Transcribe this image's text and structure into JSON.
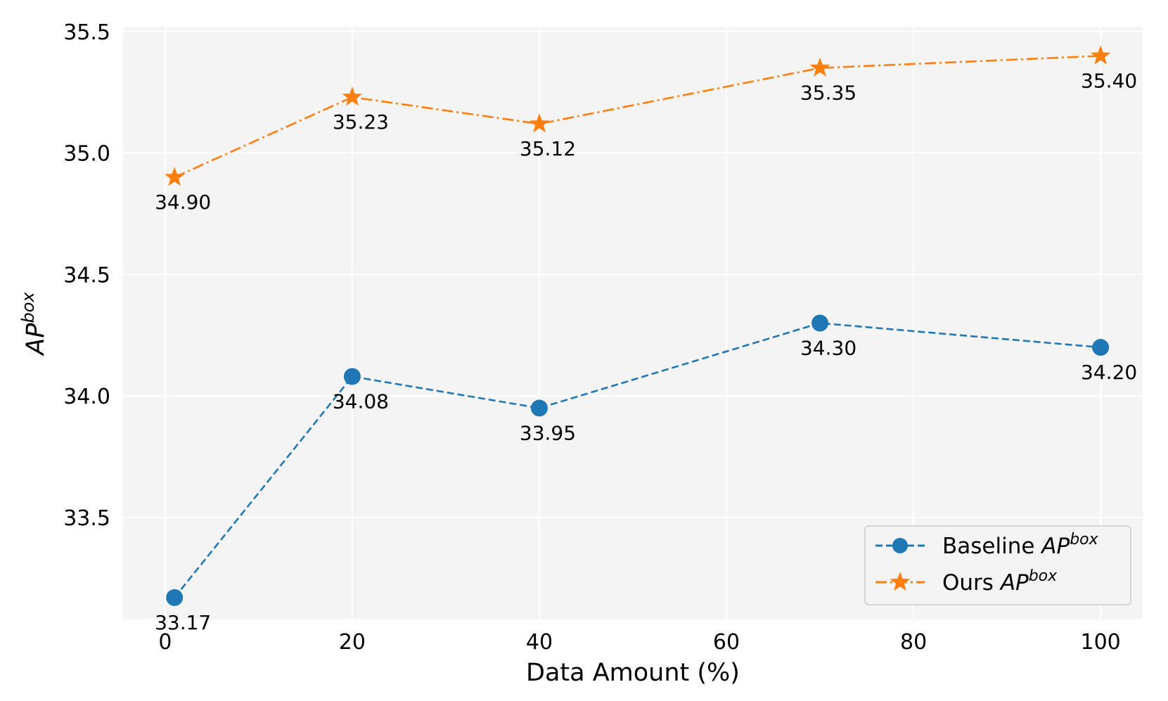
{
  "chart_data": {
    "type": "line",
    "title": "",
    "xlabel": "Data Amount (%)",
    "ylabel_main": "AP",
    "ylabel_sup": "box",
    "xlim": [
      -4.5,
      104.5
    ],
    "ylim": [
      31.0,
      35.5
    ],
    "ylim_display": [
      33.08,
      35.52
    ],
    "xticks": [
      0,
      20,
      40,
      60,
      80,
      100
    ],
    "yticks": [
      33.5,
      34.0,
      34.5,
      35.0,
      35.5
    ],
    "grid": true,
    "legend_position": "lower-right",
    "series": [
      {
        "name": "Baseline",
        "name_sup": "box",
        "name_main": "AP",
        "color": "#1f77b4",
        "marker": "circle",
        "linestyle": "dashed",
        "x": [
          1,
          20,
          40,
          70,
          100
        ],
        "values": [
          33.17,
          34.08,
          33.95,
          34.3,
          34.2
        ],
        "labels": [
          "33.17",
          "34.08",
          "33.95",
          "34.30",
          "34.20"
        ]
      },
      {
        "name": "Ours",
        "name_sup": "box",
        "name_main": "AP",
        "color": "#ff7f0e",
        "marker": "star",
        "linestyle": "dashdot",
        "x": [
          1,
          20,
          40,
          70,
          100
        ],
        "values": [
          34.9,
          35.23,
          35.12,
          35.35,
          35.4
        ],
        "labels": [
          "34.90",
          "35.23",
          "35.12",
          "35.35",
          "35.40"
        ]
      }
    ]
  }
}
